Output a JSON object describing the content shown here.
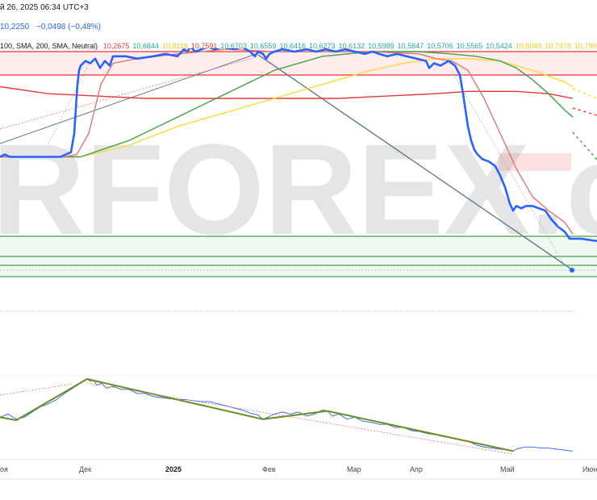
{
  "header": {
    "datetime": "й 26, 2025 06:34 UTC+3",
    "price": "10,2250",
    "change": "−0,0498 (−0,48%)",
    "ma_settings": "100, SMA, 200, SMA, Neutral)",
    "ma_values": [
      {
        "text": "10,2675",
        "color": "#e53935"
      },
      {
        "text": "10,6844",
        "color": "#26a69a"
      },
      {
        "text": "10,8119",
        "color": "#f5c518"
      },
      {
        "text": "10,7591",
        "color": "#e53935"
      },
      {
        "text": "10,6703",
        "color": "#26a69a"
      },
      {
        "text": "10,6559",
        "color": "#26a69a"
      },
      {
        "text": "10,6416",
        "color": "#26a69a"
      },
      {
        "text": "10,6273",
        "color": "#26a69a"
      },
      {
        "text": "10,6132",
        "color": "#26a69a"
      },
      {
        "text": "10,5989",
        "color": "#26a69a"
      },
      {
        "text": "10,5847",
        "color": "#26a69a"
      },
      {
        "text": "10,5706",
        "color": "#26a69a"
      },
      {
        "text": "10,5565",
        "color": "#26a69a"
      },
      {
        "text": "10,5424",
        "color": "#26a69a"
      },
      {
        "text": "10,8049",
        "color": "#f5c518"
      },
      {
        "text": "10,7978",
        "color": "#f5c518"
      },
      {
        "text": "10,790",
        "color": "#f5c518"
      }
    ]
  },
  "watermark": "RFOREX.c",
  "chart_data": [
    {
      "type": "line",
      "panel": "price",
      "x_tick_labels": [
        "оя",
        "Дек",
        "2025",
        "Фев",
        "Мар",
        "Апр",
        "Май",
        "Июн"
      ],
      "series": [
        {
          "role": "price",
          "color": "#2962ff",
          "x": [
            0,
            6,
            12,
            20,
            30,
            45,
            60,
            75,
            88,
            92,
            96,
            98,
            100,
            106,
            112,
            118,
            124,
            130,
            136,
            140,
            146,
            156,
            170,
            190,
            205,
            220,
            228,
            232,
            236,
            242,
            250,
            258,
            266,
            276,
            290,
            300,
            310,
            316,
            320,
            326,
            330,
            334,
            340,
            350,
            365,
            380,
            392,
            404,
            416,
            428,
            440,
            452,
            462,
            470,
            480,
            492,
            504,
            516,
            528,
            532,
            538,
            546,
            556,
            564,
            570,
            574,
            577,
            580,
            584,
            588,
            592,
            598,
            606,
            614,
            620,
            626,
            632,
            636,
            640,
            646,
            652,
            660,
            668,
            676,
            684,
            692,
            700,
            706,
            710,
            720,
            740
          ],
          "y": [
            10.35,
            10.36,
            10.35,
            10.35,
            10.35,
            10.35,
            10.35,
            10.35,
            10.37,
            10.45,
            10.66,
            10.72,
            10.74,
            10.76,
            10.75,
            10.77,
            10.73,
            10.76,
            10.74,
            10.78,
            10.78,
            10.78,
            10.77,
            10.78,
            10.79,
            10.78,
            10.81,
            10.8,
            10.82,
            10.8,
            10.81,
            10.82,
            10.81,
            10.82,
            10.81,
            10.82,
            10.8,
            10.78,
            10.8,
            10.79,
            10.77,
            10.79,
            10.8,
            10.81,
            10.8,
            10.81,
            10.8,
            10.81,
            10.8,
            10.81,
            10.8,
            10.79,
            10.8,
            10.79,
            10.78,
            10.79,
            10.78,
            10.77,
            10.76,
            10.73,
            10.75,
            10.74,
            10.76,
            10.74,
            10.7,
            10.62,
            10.55,
            10.48,
            10.42,
            10.38,
            10.36,
            10.34,
            10.33,
            10.31,
            10.27,
            10.22,
            10.15,
            10.12,
            10.14,
            10.13,
            10.14,
            10.14,
            10.13,
            10.12,
            10.08,
            10.05,
            10.03,
            10.0,
            10.0,
            10.0,
            9.99
          ]
        },
        {
          "role": "ma-fast",
          "color": "#e57373",
          "x": [
            0,
            40,
            80,
            95,
            110,
            125,
            140,
            170,
            220,
            280,
            340,
            400,
            460,
            520,
            540,
            560,
            580,
            600,
            620,
            640,
            660,
            680,
            700,
            710
          ],
          "y": [
            10.35,
            10.35,
            10.35,
            10.36,
            10.45,
            10.66,
            10.75,
            10.77,
            10.79,
            10.81,
            10.8,
            10.8,
            10.8,
            10.79,
            10.77,
            10.76,
            10.72,
            10.6,
            10.45,
            10.3,
            10.18,
            10.12,
            10.07,
            10.02
          ]
        },
        {
          "role": "ma-green",
          "color": "#43a047",
          "x": [
            0,
            60,
            100,
            160,
            220,
            280,
            340,
            400,
            460,
            520,
            560,
            590,
            620,
            640,
            660,
            680,
            700,
            710
          ],
          "y": [
            10.35,
            10.35,
            10.35,
            10.42,
            10.52,
            10.62,
            10.72,
            10.78,
            10.8,
            10.8,
            10.79,
            10.78,
            10.76,
            10.73,
            10.68,
            10.62,
            10.55,
            10.52
          ]
        },
        {
          "role": "ma-yellow",
          "color": "#fdd835",
          "x": [
            0,
            100,
            160,
            220,
            280,
            340,
            400,
            460,
            500,
            540,
            580,
            620,
            660,
            700,
            710
          ],
          "y": [
            10.35,
            10.35,
            10.4,
            10.48,
            10.54,
            10.6,
            10.66,
            10.72,
            10.75,
            10.77,
            10.77,
            10.76,
            10.72,
            10.67,
            10.65
          ]
        },
        {
          "role": "ma-red",
          "color": "#e53935",
          "x": [
            0,
            60,
            120,
            180,
            240,
            300,
            360,
            420,
            480,
            540,
            580,
            600,
            640,
            680,
            710
          ],
          "y": [
            10.65,
            10.62,
            10.61,
            10.6,
            10.6,
            10.6,
            10.6,
            10.6,
            10.61,
            10.62,
            10.63,
            10.63,
            10.63,
            10.62,
            10.6
          ]
        }
      ]
    },
    {
      "type": "line",
      "panel": "oscillator",
      "series": [
        {
          "role": "oscillator",
          "color": "#2962ff",
          "x": [
            0,
            10,
            20,
            30,
            40,
            50,
            60,
            70,
            80,
            90,
            100,
            108,
            112,
            116,
            120,
            126,
            132,
            140,
            150,
            160,
            170,
            180,
            190,
            200,
            210,
            220,
            230,
            240,
            250,
            260,
            270,
            280,
            290,
            300,
            310,
            320,
            326,
            332,
            340,
            350,
            360,
            370,
            380,
            390,
            400,
            406,
            412,
            420,
            430,
            440,
            450,
            460,
            470,
            480,
            490,
            500,
            510,
            520,
            530,
            540,
            550,
            560,
            570,
            580,
            590,
            600,
            610,
            620,
            630,
            636,
            640,
            650,
            660,
            670,
            680,
            690,
            700,
            710
          ],
          "y": [
            35,
            38,
            33,
            35,
            40,
            45,
            48,
            52,
            58,
            63,
            68,
            72,
            70,
            71,
            66,
            68,
            63,
            65,
            62,
            62,
            58,
            58,
            55,
            54,
            53,
            52,
            52,
            51,
            50,
            50,
            48,
            46,
            44,
            42,
            39,
            37,
            33,
            35,
            38,
            40,
            38,
            40,
            36,
            38,
            42,
            41,
            36,
            38,
            33,
            35,
            31,
            30,
            28,
            28,
            25,
            25,
            22,
            21,
            19,
            18,
            16,
            15,
            13,
            12,
            8,
            6,
            5,
            4,
            3,
            2,
            4,
            6,
            6,
            5,
            5,
            4,
            3,
            2
          ]
        },
        {
          "role": "zigzag",
          "color": "#6b8e23",
          "x": [
            0,
            20,
            108,
            326,
            406,
            636
          ],
          "y": [
            35,
            32,
            72,
            33,
            41,
            2
          ]
        }
      ]
    }
  ]
}
